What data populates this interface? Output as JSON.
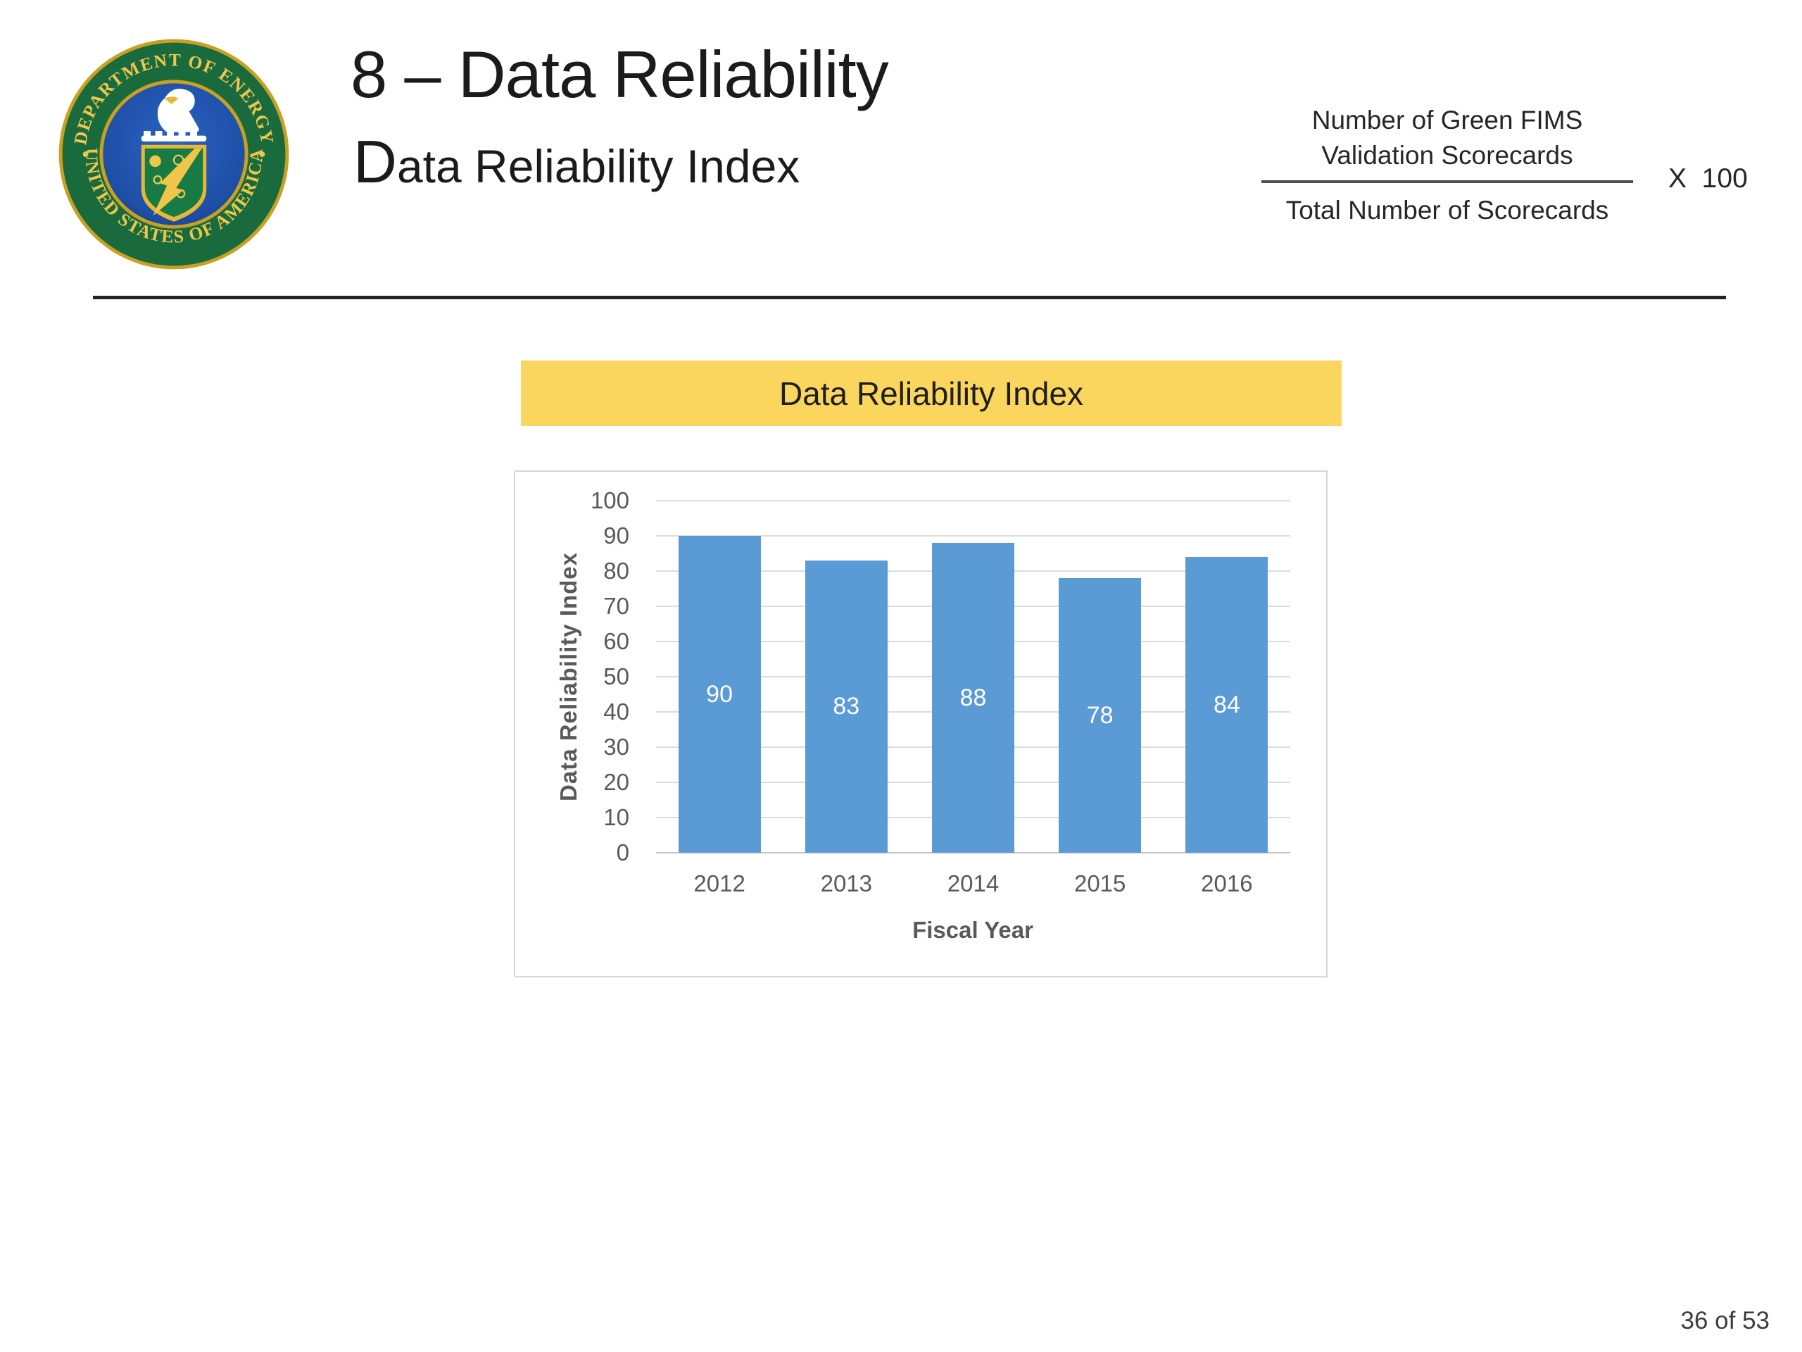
{
  "header": {
    "title": "8 – Data Reliability",
    "subtitle": "Data Reliability Index",
    "seal": {
      "ring_text_top": "DEPARTMENT OF ENERGY",
      "ring_text_bottom": "UNITED STATES OF AMERICA"
    },
    "formula": {
      "numerator_line1": "Number of Green FIMS",
      "numerator_line2": "Validation Scorecards",
      "denominator": "Total Number of Scorecards",
      "multiplier": "X  100"
    }
  },
  "banner": {
    "label": "Data Reliability Index",
    "background_color": "#FBD65F"
  },
  "chart_data": {
    "type": "bar",
    "title": "Data Reliability Index",
    "categories": [
      "2012",
      "2013",
      "2014",
      "2015",
      "2016"
    ],
    "values": [
      90,
      83,
      88,
      78,
      84
    ],
    "xlabel": "Fiscal Year",
    "ylabel": "Data Reliability Index",
    "ylim": [
      0,
      100
    ],
    "yticks": [
      0,
      10,
      20,
      30,
      40,
      50,
      60,
      70,
      80,
      90,
      100
    ],
    "grid": true,
    "legend": false,
    "bar_color": "#5B9BD5",
    "label_color": "#FFFFFF",
    "grid_color": "#DCDCDC",
    "axis_text_color": "#595959"
  },
  "footer": {
    "page_indicator": "36 of 53"
  }
}
